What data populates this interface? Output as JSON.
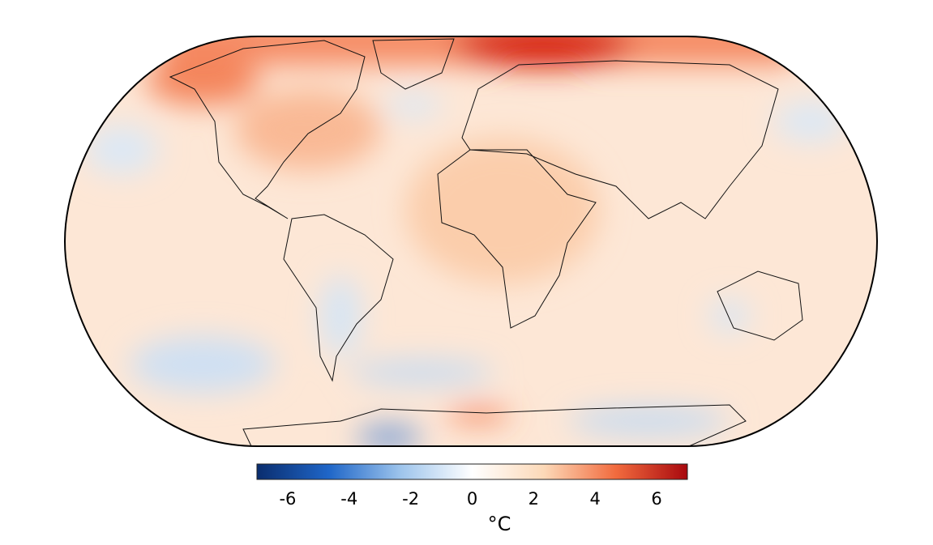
{
  "chart_data": {
    "type": "colorbar",
    "label": "°C",
    "xlim": [
      -7,
      7
    ],
    "xticks": [
      -6,
      -4,
      -2,
      0,
      2,
      4,
      6
    ],
    "colormap": [
      "#0a2d6e",
      "#1f66c8",
      "#9dc4ec",
      "#ffffff",
      "#fcd9b8",
      "#f26b3e",
      "#a8080e"
    ]
  }
}
